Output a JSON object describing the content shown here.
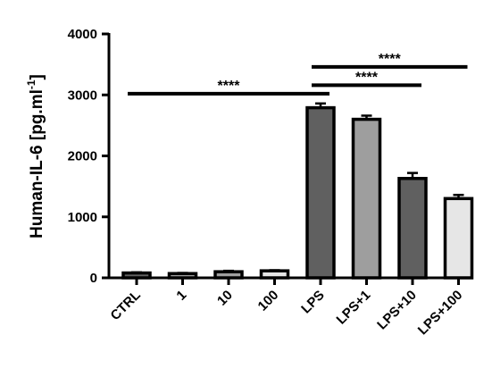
{
  "chart_data": {
    "type": "bar",
    "categories": [
      "CTRL",
      "1",
      "10",
      "100",
      "LPS",
      "LPS+1",
      "LPS+10",
      "LPS+100"
    ],
    "values": [
      80,
      70,
      100,
      115,
      2790,
      2600,
      1630,
      1300
    ],
    "errors": [
      10,
      10,
      15,
      10,
      70,
      60,
      90,
      60
    ],
    "bar_fills": [
      "#606060",
      "#9e9e9e",
      "#9e9e9e",
      "#e6e6e6",
      "#606060",
      "#9e9e9e",
      "#606060",
      "#e6e6e6"
    ],
    "ylabel": "Human-IL-6 [pg.ml",
    "ylabel_superscript": "-1",
    "ylabel_close": "]",
    "ylim": [
      0,
      4000
    ],
    "yticks": [
      "0",
      "1000",
      "2000",
      "3000",
      "4000"
    ],
    "ytick_values": [
      0,
      1000,
      2000,
      3000,
      4000
    ],
    "significance": [
      {
        "label": "****",
        "from": "CTRL",
        "to": "LPS",
        "y": 3020
      },
      {
        "label": "****",
        "from": "LPS",
        "to": "LPS+10",
        "y": 3160
      },
      {
        "label": "****",
        "from": "LPS",
        "to": "LPS+100",
        "y": 3460
      }
    ]
  }
}
